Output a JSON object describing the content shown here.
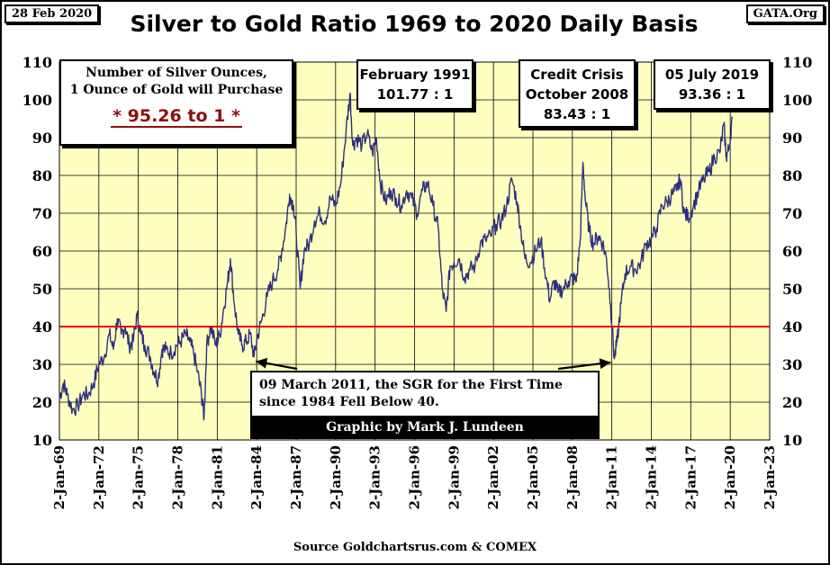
{
  "header": {
    "date": "28 Feb 2020",
    "source_site": "GATA.Org"
  },
  "info_box": {
    "line1": "Number of Silver Ounces,",
    "line2": "1 Ounce of Gold will Purchase",
    "value": "* 95.26 to 1 *"
  },
  "annotations": {
    "feb1991": {
      "line1": "February 1991",
      "line2": "101.77 : 1"
    },
    "credit_crisis": {
      "line1": "Credit Crisis",
      "line2": "October 2008",
      "line3": "83.43 : 1"
    },
    "july2019": {
      "line1": "05 July 2019",
      "line2": "93.36 : 1"
    },
    "march2011": {
      "line1": "09 March 2011, the SGR for the First Time",
      "line2": "since 1984 Fell Below 40."
    }
  },
  "credit": "Graphic by Mark J. Lundeen",
  "footer": "Source Goldchartsrus.com & COMEX",
  "colors": {
    "plot_bg": "#ffffc0",
    "series": "#2e2e7e",
    "threshold": "#e00000",
    "credit_bg": "#000000",
    "value_red": "#8b1010"
  },
  "chart_data": {
    "type": "line",
    "title": "Silver to Gold Ratio 1969 to 2020 Daily Basis",
    "xlabel": "",
    "ylabel": "",
    "ylim": [
      10,
      110
    ],
    "yticks": [
      10,
      20,
      30,
      40,
      50,
      60,
      70,
      80,
      90,
      100,
      110
    ],
    "xlim": [
      1969,
      2023
    ],
    "xticks": [
      1969,
      1972,
      1975,
      1978,
      1981,
      1984,
      1987,
      1990,
      1993,
      1996,
      1999,
      2002,
      2005,
      2008,
      2011,
      2014,
      2017,
      2020,
      2023
    ],
    "xtick_labels": [
      "2-Jan-69",
      "2-Jan-72",
      "2-Jan-75",
      "2-Jan-78",
      "2-Jan-81",
      "2-Jan-84",
      "2-Jan-87",
      "2-Jan-90",
      "2-Jan-93",
      "2-Jan-96",
      "2-Jan-99",
      "2-Jan-02",
      "2-Jan-05",
      "2-Jan-08",
      "2-Jan-11",
      "2-Jan-14",
      "2-Jan-17",
      "2-Jan-20",
      "2-Jan-23"
    ],
    "threshold": 40,
    "series": [
      {
        "name": "Silver to Gold Ratio",
        "points": [
          [
            1969.0,
            21
          ],
          [
            1969.3,
            25
          ],
          [
            1969.6,
            22
          ],
          [
            1970.0,
            18
          ],
          [
            1970.4,
            19
          ],
          [
            1970.8,
            22
          ],
          [
            1971.2,
            22
          ],
          [
            1971.6,
            25
          ],
          [
            1972.0,
            30
          ],
          [
            1972.4,
            32
          ],
          [
            1972.8,
            38
          ],
          [
            1973.1,
            34
          ],
          [
            1973.4,
            42
          ],
          [
            1973.7,
            38
          ],
          [
            1974.0,
            40
          ],
          [
            1974.3,
            35
          ],
          [
            1974.6,
            36
          ],
          [
            1974.9,
            43
          ],
          [
            1975.2,
            38
          ],
          [
            1975.5,
            35
          ],
          [
            1975.9,
            32
          ],
          [
            1976.2,
            28
          ],
          [
            1976.5,
            26
          ],
          [
            1976.8,
            34
          ],
          [
            1977.1,
            34
          ],
          [
            1977.5,
            33
          ],
          [
            1977.9,
            35
          ],
          [
            1978.2,
            36
          ],
          [
            1978.6,
            38
          ],
          [
            1978.9,
            36
          ],
          [
            1979.2,
            33
          ],
          [
            1979.5,
            28
          ],
          [
            1979.8,
            22
          ],
          [
            1980.0,
            16
          ],
          [
            1980.2,
            35
          ],
          [
            1980.5,
            40
          ],
          [
            1980.9,
            35
          ],
          [
            1981.2,
            38
          ],
          [
            1981.5,
            45
          ],
          [
            1981.8,
            52
          ],
          [
            1982.0,
            58
          ],
          [
            1982.3,
            46
          ],
          [
            1982.6,
            38
          ],
          [
            1982.9,
            35
          ],
          [
            1983.2,
            36
          ],
          [
            1983.5,
            38
          ],
          [
            1983.8,
            32
          ],
          [
            1984.1,
            38
          ],
          [
            1984.4,
            42
          ],
          [
            1984.8,
            48
          ],
          [
            1985.2,
            52
          ],
          [
            1985.6,
            55
          ],
          [
            1985.9,
            60
          ],
          [
            1986.2,
            66
          ],
          [
            1986.5,
            75
          ],
          [
            1986.8,
            72
          ],
          [
            1987.0,
            65
          ],
          [
            1987.3,
            50
          ],
          [
            1987.6,
            60
          ],
          [
            1988.0,
            62
          ],
          [
            1988.4,
            68
          ],
          [
            1988.8,
            70
          ],
          [
            1989.2,
            68
          ],
          [
            1989.6,
            74
          ],
          [
            1990.0,
            72
          ],
          [
            1990.4,
            78
          ],
          [
            1990.8,
            92
          ],
          [
            1991.1,
            101.77
          ],
          [
            1991.3,
            88
          ],
          [
            1991.6,
            90
          ],
          [
            1992.0,
            88
          ],
          [
            1992.4,
            91
          ],
          [
            1992.8,
            86
          ],
          [
            1993.1,
            90
          ],
          [
            1993.4,
            78
          ],
          [
            1993.8,
            73
          ],
          [
            1994.2,
            76
          ],
          [
            1994.6,
            74
          ],
          [
            1995.0,
            72
          ],
          [
            1995.4,
            76
          ],
          [
            1995.8,
            74
          ],
          [
            1996.2,
            70
          ],
          [
            1996.6,
            76
          ],
          [
            1997.0,
            78
          ],
          [
            1997.4,
            72
          ],
          [
            1997.8,
            66
          ],
          [
            1998.1,
            50
          ],
          [
            1998.4,
            44
          ],
          [
            1998.7,
            56
          ],
          [
            1999.0,
            57
          ],
          [
            1999.4,
            58
          ],
          [
            1999.8,
            53
          ],
          [
            2000.2,
            55
          ],
          [
            2000.6,
            56
          ],
          [
            2001.0,
            62
          ],
          [
            2001.4,
            63
          ],
          [
            2001.8,
            64
          ],
          [
            2002.2,
            67
          ],
          [
            2002.6,
            68
          ],
          [
            2003.0,
            72
          ],
          [
            2003.4,
            79
          ],
          [
            2003.8,
            73
          ],
          [
            2004.1,
            65
          ],
          [
            2004.4,
            58
          ],
          [
            2004.8,
            57
          ],
          [
            2005.2,
            60
          ],
          [
            2005.6,
            63
          ],
          [
            2006.0,
            53
          ],
          [
            2006.3,
            47
          ],
          [
            2006.6,
            52
          ],
          [
            2006.9,
            49
          ],
          [
            2007.3,
            50
          ],
          [
            2007.7,
            52
          ],
          [
            2008.0,
            53
          ],
          [
            2008.3,
            52
          ],
          [
            2008.6,
            63
          ],
          [
            2008.8,
            83.43
          ],
          [
            2009.0,
            73
          ],
          [
            2009.3,
            65
          ],
          [
            2009.6,
            62
          ],
          [
            2010.0,
            64
          ],
          [
            2010.3,
            62
          ],
          [
            2010.6,
            58
          ],
          [
            2010.9,
            46
          ],
          [
            2011.19,
            31.5
          ],
          [
            2011.4,
            36
          ],
          [
            2011.7,
            46
          ],
          [
            2012.0,
            54
          ],
          [
            2012.4,
            56
          ],
          [
            2012.8,
            55
          ],
          [
            2013.2,
            57
          ],
          [
            2013.6,
            62
          ],
          [
            2014.0,
            63
          ],
          [
            2014.4,
            66
          ],
          [
            2014.8,
            72
          ],
          [
            2015.2,
            73
          ],
          [
            2015.6,
            75
          ],
          [
            2015.9,
            76
          ],
          [
            2016.2,
            79
          ],
          [
            2016.5,
            70
          ],
          [
            2016.8,
            69
          ],
          [
            2017.2,
            72
          ],
          [
            2017.6,
            76
          ],
          [
            2018.0,
            79
          ],
          [
            2018.4,
            81
          ],
          [
            2018.8,
            85
          ],
          [
            2019.2,
            86
          ],
          [
            2019.51,
            93.36
          ],
          [
            2019.7,
            85
          ],
          [
            2019.9,
            87
          ],
          [
            2020.16,
            95.26
          ]
        ]
      }
    ]
  }
}
